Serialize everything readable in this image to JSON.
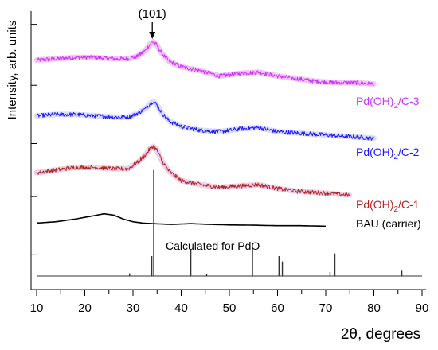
{
  "chart_data": {
    "type": "line",
    "xlabel": "2θ, degrees",
    "ylabel": "Intensity, arb. units",
    "xlim": [
      10,
      90
    ],
    "x_ticks": [
      10,
      20,
      30,
      40,
      50,
      60,
      70,
      80,
      90
    ],
    "ylim": [
      0,
      100
    ],
    "grid": false,
    "legend": "inline labels at right end of curves",
    "annotation": {
      "text": "(101)",
      "x": 34
    },
    "series": [
      {
        "name": "Pd(OH)2/C-3",
        "label_main": "Pd(OH)",
        "label_sub": "2",
        "label_tail": "/C-3",
        "color": "#cc33ff",
        "halo": "#f3c6f6",
        "x": [
          10,
          14,
          18,
          22,
          26,
          29,
          31,
          32.5,
          33.5,
          34.2,
          35,
          36,
          37.5,
          40,
          44,
          48,
          52,
          56,
          60,
          64,
          68,
          72,
          76,
          80
        ],
        "y": [
          81.5,
          82.0,
          82.5,
          82.5,
          82.0,
          82.0,
          83.0,
          85.0,
          87.5,
          88.5,
          87.0,
          84.0,
          81.0,
          79.0,
          77.5,
          75.5,
          76.5,
          77.0,
          75.5,
          74.5,
          73.5,
          73.0,
          73.0,
          72.5
        ]
      },
      {
        "name": "Pd(OH)2/C-2",
        "label_main": "Pd(OH)",
        "label_sub": "2",
        "label_tail": "/C-2",
        "color": "#1a1aff",
        "halo": "#dcdcff",
        "x": [
          10,
          14,
          18,
          22,
          26,
          29,
          31,
          32.5,
          33.5,
          34.2,
          35,
          36,
          37.5,
          40,
          44,
          48,
          52,
          56,
          60,
          64,
          68,
          72,
          76,
          80
        ],
        "y": [
          60.5,
          61.0,
          61.0,
          60.5,
          60.0,
          60.0,
          61.5,
          63.0,
          65.0,
          66.0,
          64.5,
          61.5,
          58.5,
          56.5,
          55.0,
          54.5,
          55.5,
          56.0,
          54.5,
          54.0,
          53.5,
          53.0,
          52.5,
          52.0
        ]
      },
      {
        "name": "Pd(OH)2/C-1",
        "label_main": "Pd(OH)",
        "label_sub": "2",
        "label_tail": "/C-1",
        "color": "#b3261e",
        "halo": "#ecd0ee",
        "x": [
          10,
          14,
          18,
          22,
          26,
          29,
          31,
          32.5,
          33.5,
          34.2,
          35,
          36,
          37.5,
          40,
          44,
          48,
          52,
          56,
          60,
          64,
          68,
          72,
          75
        ],
        "y": [
          39.0,
          40.0,
          41.0,
          41.0,
          40.5,
          40.5,
          43.0,
          45.5,
          48.0,
          49.0,
          47.5,
          43.5,
          39.5,
          36.0,
          34.5,
          33.5,
          34.0,
          34.5,
          33.0,
          32.0,
          31.5,
          31.0,
          30.5
        ]
      },
      {
        "name": "BAU (carrier)",
        "label_main": "BAU (carrier)",
        "label_sub": "",
        "label_tail": "",
        "color": "#000000",
        "halo": "",
        "x": [
          10,
          14,
          18,
          21,
          24,
          26,
          28,
          30,
          32,
          34,
          38,
          42,
          46,
          50,
          55,
          60,
          65,
          70
        ],
        "y": [
          20.0,
          20.5,
          21.5,
          22.5,
          23.5,
          23.0,
          21.5,
          20.5,
          20.0,
          19.8,
          19.5,
          19.8,
          19.5,
          19.3,
          19.2,
          19.0,
          19.0,
          18.8
        ]
      }
    ],
    "reference": {
      "name": "Calculated for PdO",
      "label": "Calculated for PdO",
      "color": "#333333",
      "baseline": 0,
      "peaks": [
        {
          "x": 29.3,
          "height": 1.0
        },
        {
          "x": 33.9,
          "height": 7.5
        },
        {
          "x": 34.3,
          "height": 40.0
        },
        {
          "x": 42.0,
          "height": 10.0
        },
        {
          "x": 45.3,
          "height": 0.8
        },
        {
          "x": 54.8,
          "height": 10.5
        },
        {
          "x": 60.3,
          "height": 7.5
        },
        {
          "x": 61.0,
          "height": 5.5
        },
        {
          "x": 70.9,
          "height": 1.5
        },
        {
          "x": 71.9,
          "height": 8.5
        },
        {
          "x": 85.8,
          "height": 2.0
        }
      ]
    }
  }
}
